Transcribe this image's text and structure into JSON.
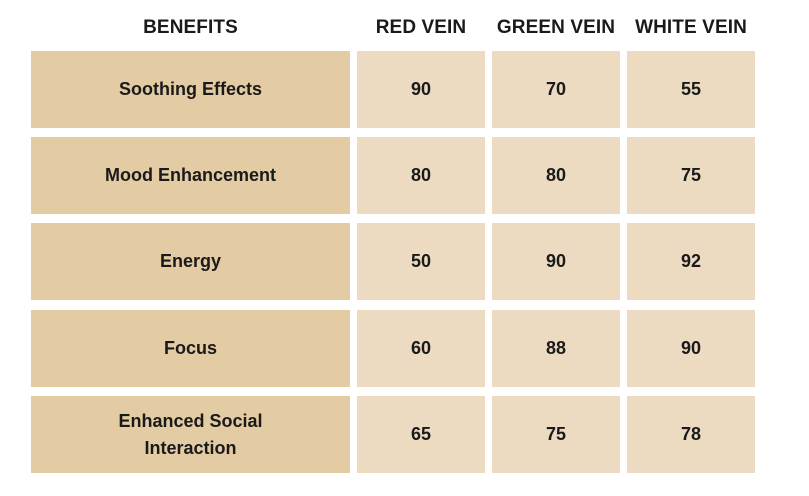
{
  "chart_data": {
    "type": "table",
    "columns": [
      "BENEFITS",
      "RED VEIN",
      "GREEN VEIN",
      "WHITE VEIN"
    ],
    "rows": [
      {
        "benefit": "Soothing Effects",
        "values": [
          "90",
          "70",
          "55"
        ]
      },
      {
        "benefit": "Mood Enhancement",
        "values": [
          "80",
          "80",
          "75"
        ]
      },
      {
        "benefit": "Energy",
        "values": [
          "50",
          "90",
          "92"
        ]
      },
      {
        "benefit": "Focus",
        "values": [
          "60",
          "88",
          "90"
        ]
      },
      {
        "benefit": "Enhanced Social Interaction",
        "values": [
          "65",
          "75",
          "78"
        ]
      }
    ],
    "colors": {
      "label_cell": "#e3cba3",
      "value_cell": "#ecdbc0",
      "text": "#1a1a1a",
      "background": "#ffffff"
    }
  }
}
